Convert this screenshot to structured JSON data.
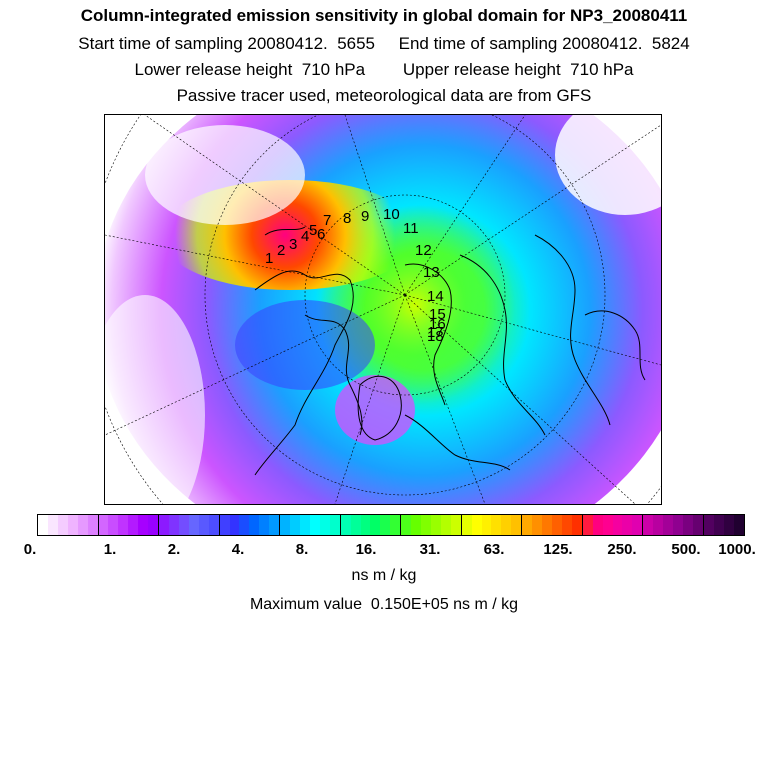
{
  "header": {
    "title": "Column-integrated emission sensitivity in global domain for NP3_20080411",
    "line1": "Start time of sampling 20080412.  5655     End time of sampling 20080412.  5824",
    "line2": "Lower release height  710 hPa        Upper release height  710 hPa",
    "line3": "Passive tracer used, meteorological data are from GFS"
  },
  "map": {
    "projection": "north-polar-stereographic",
    "track_labels": [
      "1",
      "2",
      "3",
      "4",
      "5",
      "6",
      "7",
      "8",
      "9",
      "10",
      "11",
      "12",
      "13",
      "14",
      "15",
      "16",
      "17",
      "18"
    ]
  },
  "legend": {
    "tick_labels": [
      "0.",
      "1.",
      "2.",
      "4.",
      "8.",
      "16.",
      "31.",
      "63.",
      "125.",
      "250.",
      "500.",
      "1000."
    ],
    "unit": "ns m / kg",
    "max_value_text": "Maximum value  0.150E+05 ns m / kg",
    "colors": [
      "#ffffff",
      "#fae6ff",
      "#f4ccff",
      "#efb3ff",
      "#e699ff",
      "#dd80ff",
      "#d366ff",
      "#c94dff",
      "#c033ff",
      "#b31aff",
      "#a600ff",
      "#9900ff",
      "#8c1aff",
      "#7f33ff",
      "#734dff",
      "#6666ff",
      "#5959ff",
      "#4d4dff",
      "#4040ff",
      "#3333ff",
      "#1a4dff",
      "#0066ff",
      "#0080ff",
      "#0099ff",
      "#00b3ff",
      "#00ccff",
      "#00e6ff",
      "#00ffff",
      "#00ffe6",
      "#00ffcc",
      "#00ffb3",
      "#00ff99",
      "#00ff80",
      "#00ff66",
      "#1aff4d",
      "#33ff33",
      "#4dff1a",
      "#66ff00",
      "#80ff00",
      "#99ff00",
      "#b3ff00",
      "#ccff00",
      "#e6ff00",
      "#ffff00",
      "#fff000",
      "#ffe000",
      "#ffd000",
      "#ffc000",
      "#ffa800",
      "#ff9000",
      "#ff7800",
      "#ff6000",
      "#ff4800",
      "#ff3000",
      "#ff1a40",
      "#ff0080",
      "#ff0090",
      "#f500a0",
      "#eb00a8",
      "#e000b0",
      "#cc00a8",
      "#b800a0",
      "#a30098",
      "#8f0090",
      "#7a0080",
      "#660070",
      "#520060",
      "#400050",
      "#300040",
      "#200030"
    ]
  }
}
